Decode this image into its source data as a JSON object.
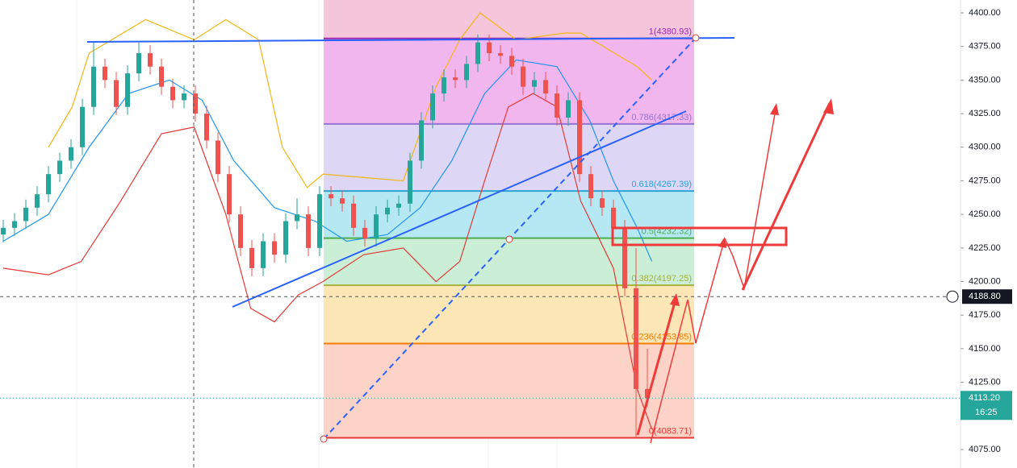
{
  "chart_data": {
    "type": "candlestick",
    "ylim": [
      4075,
      4400
    ],
    "yticks": [
      {
        "value": 4075,
        "label": "4075.00"
      },
      {
        "value": 4100,
        "label": "4100.00"
      },
      {
        "value": 4125,
        "label": "4125.00"
      },
      {
        "value": 4150,
        "label": "4150.00"
      },
      {
        "value": 4175,
        "label": "4175.00"
      },
      {
        "value": 4200,
        "label": "4200.00"
      },
      {
        "value": 4225,
        "label": "4225.00"
      },
      {
        "value": 4250,
        "label": "4250.00"
      },
      {
        "value": 4275,
        "label": "4275.00"
      },
      {
        "value": 4300,
        "label": "4300.00"
      },
      {
        "value": 4325,
        "label": "4325.00"
      },
      {
        "value": 4350,
        "label": "4350.00"
      },
      {
        "value": 4375,
        "label": "4375.00"
      },
      {
        "value": 4400,
        "label": "4400.00"
      }
    ],
    "up_color": "#26a69a",
    "down_color": "#ef5350",
    "open": [
      4235,
      4240,
      4245,
      4255,
      4265,
      4280,
      4290,
      4300,
      4330,
      4360,
      4350,
      4330,
      4355,
      4370,
      4360,
      4345,
      4335,
      4340,
      4325,
      4305,
      4280,
      4250,
      4225,
      4210,
      4230,
      4220,
      4245,
      4250,
      4225,
      4265,
      4262,
      4258,
      4240,
      4232,
      4250,
      4255,
      4258,
      4290,
      4320,
      4340,
      4352,
      4350,
      4362,
      4378,
      4370,
      4368,
      4360,
      4345,
      4350,
      4340,
      4322,
      4335,
      4280,
      4262,
      4255,
      4240,
      4195,
      4120
    ],
    "high": [
      4246,
      4251,
      4261,
      4271,
      4286,
      4296,
      4306,
      4336,
      4378,
      4366,
      4356,
      4361,
      4378,
      4376,
      4366,
      4351,
      4346,
      4346,
      4331,
      4311,
      4286,
      4256,
      4231,
      4236,
      4236,
      4251,
      4262,
      4256,
      4271,
      4271,
      4268,
      4264,
      4246,
      4256,
      4261,
      4264,
      4296,
      4326,
      4346,
      4358,
      4358,
      4368,
      4384,
      4384,
      4376,
      4374,
      4366,
      4356,
      4356,
      4346,
      4341,
      4341,
      4286,
      4268,
      4261,
      4246,
      4225,
      4150
    ],
    "low": [
      4229,
      4234,
      4239,
      4249,
      4259,
      4274,
      4284,
      4294,
      4324,
      4344,
      4324,
      4324,
      4349,
      4354,
      4339,
      4329,
      4329,
      4319,
      4299,
      4274,
      4244,
      4219,
      4204,
      4204,
      4214,
      4214,
      4239,
      4219,
      4219,
      4256,
      4252,
      4234,
      4226,
      4226,
      4244,
      4249,
      4252,
      4284,
      4314,
      4334,
      4344,
      4344,
      4356,
      4364,
      4362,
      4354,
      4339,
      4339,
      4334,
      4316,
      4316,
      4274,
      4256,
      4249,
      4234,
      4189,
      4084,
      4107
    ],
    "close": [
      4240,
      4245,
      4255,
      4265,
      4280,
      4290,
      4300,
      4330,
      4360,
      4350,
      4330,
      4355,
      4370,
      4360,
      4345,
      4335,
      4340,
      4325,
      4305,
      4280,
      4250,
      4225,
      4210,
      4230,
      4220,
      4245,
      4250,
      4225,
      4265,
      4262,
      4258,
      4240,
      4232,
      4250,
      4255,
      4258,
      4290,
      4320,
      4340,
      4352,
      4350,
      4362,
      4378,
      4370,
      4368,
      4360,
      4345,
      4350,
      4340,
      4322,
      4335,
      4280,
      4262,
      4255,
      4240,
      4195,
      4120,
      4113.2
    ],
    "overlays": [
      {
        "color": "#f2b714",
        "x": [
          4.0,
          6.1,
          7.6,
          12.6,
          16.9,
          19.7,
          22.6,
          24.7,
          26.9,
          28.3,
          35.4,
          38.3,
          40.4,
          42.2,
          45.4,
          49.7,
          51.1,
          56.1,
          57.4
        ],
        "values": [
          4300,
          4330,
          4370,
          4395,
          4380,
          4395,
          4380,
          4300,
          4270,
          4280,
          4275,
          4345,
          4380,
          4400,
          4380,
          4385,
          4385,
          4360,
          4350
        ]
      },
      {
        "color": "#2196f3",
        "x": [
          0,
          4.0,
          7.6,
          11.1,
          14.7,
          17.6,
          20.4,
          24.0,
          27.6,
          30.4,
          34.0,
          36.9,
          39.7,
          42.6,
          45.4,
          49.0,
          51.9,
          54.0,
          56.1,
          57.4
        ],
        "values": [
          4230,
          4250,
          4300,
          4340,
          4350,
          4335,
          4290,
          4255,
          4245,
          4230,
          4235,
          4255,
          4290,
          4340,
          4365,
          4360,
          4320,
          4275,
          4240,
          4215
        ]
      },
      {
        "color": "#e53935",
        "x": [
          0,
          4.0,
          6.9,
          10.4,
          14.0,
          16.9,
          19.7,
          21.9,
          24.0,
          26.1,
          28.3,
          31.9,
          35.4,
          38.3,
          40.4,
          42.6,
          44.7,
          46.9,
          49.0,
          51.1,
          54.0,
          56.1,
          57.4
        ],
        "values": [
          4210,
          4205,
          4215,
          4260,
          4310,
          4315,
          4250,
          4180,
          4170,
          4190,
          4200,
          4220,
          4225,
          4200,
          4215,
          4275,
          4330,
          4340,
          4330,
          4260,
          4210,
          4120,
          4090
        ]
      }
    ],
    "fib_levels": [
      {
        "value": 4380.93,
        "label": "1(4380.93)",
        "color": "#9c27b0"
      },
      {
        "value": 4317.33,
        "label": "0.786(4317.33)",
        "color": "#9575cd"
      },
      {
        "value": 4267.39,
        "label": "0.618(4267.39)",
        "color": "#29a3d6"
      },
      {
        "value": 4232.32,
        "label": "0.5(4232.32)",
        "color": "#4caf50"
      },
      {
        "value": 4197.25,
        "label": "0.382(4197.25)",
        "color": "#a5b240"
      },
      {
        "value": 4153.85,
        "label": "0.236(4153.85)",
        "color": "#f57c00"
      },
      {
        "value": 4083.71,
        "label": "0(4083.71)",
        "color": "#e53935"
      }
    ],
    "fib_fills": [
      "#f2b6ef",
      "#ddd6f4",
      "#b6e8f3",
      "#cbeed6",
      "#fde6b6",
      "#fdd3c8"
    ],
    "crosshair": {
      "value": 4188.8,
      "label": "4188.80"
    },
    "last_price": {
      "value": 4113.2,
      "label": "4113.20"
    },
    "countdown": "16:25"
  }
}
